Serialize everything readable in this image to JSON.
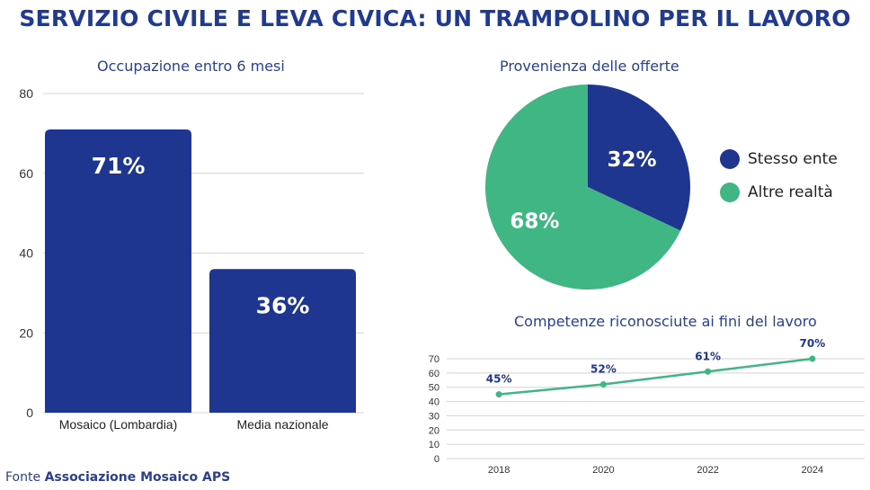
{
  "page": {
    "title": "SERVIZIO CIVILE E LEVA CIVICA: UN TRAMPOLINO PER IL LAVORO",
    "source_prefix": "Fonte",
    "source_name": "Associazione Mosaico APS"
  },
  "colors": {
    "blue": "#1f3691",
    "green": "#3fb683",
    "title": "#1f3a8f"
  },
  "chart_data": [
    {
      "type": "bar",
      "title": "Occupazione entro 6 mesi",
      "categories": [
        "Mosaico (Lombardia)",
        "Media nazionale"
      ],
      "values": [
        71,
        36
      ],
      "data_labels": [
        "71%",
        "36%"
      ],
      "ylim": [
        0,
        80
      ],
      "yticks": [
        0,
        20,
        40,
        60,
        80
      ],
      "grid": true
    },
    {
      "type": "pie",
      "title": "Provenienza delle offerte",
      "labels": [
        "Stesso ente",
        "Altre realtà"
      ],
      "values": [
        32,
        68
      ],
      "data_labels": [
        "32%",
        "68%"
      ],
      "legend": "right"
    },
    {
      "type": "line",
      "title": "Competenze riconosciute ai fini del lavoro",
      "x": [
        2018,
        2020,
        2022,
        2024
      ],
      "values": [
        45,
        52,
        61,
        70
      ],
      "data_labels": [
        "45%",
        "52%",
        "61%",
        "70%"
      ],
      "ylim": [
        0,
        70
      ],
      "yticks": [
        0,
        10,
        20,
        30,
        40,
        50,
        60,
        70
      ],
      "xticks": [
        2018,
        2020,
        2022,
        2024
      ],
      "grid": true
    }
  ]
}
